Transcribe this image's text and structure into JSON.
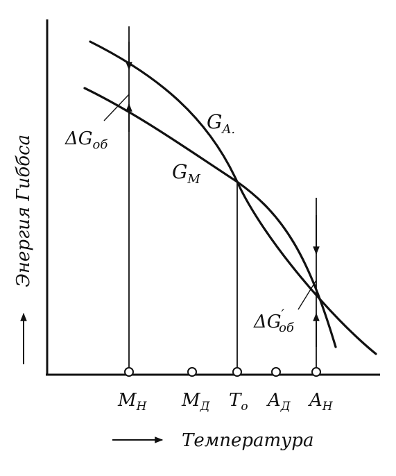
{
  "diagram": {
    "y_axis_label": "Энергия Гиббса",
    "x_axis_label": "Температура",
    "curves": [
      {
        "id": "ga",
        "label": "G",
        "sub": "A."
      },
      {
        "id": "gm",
        "label": "G",
        "sub": "M"
      }
    ],
    "delta_labels": [
      {
        "id": "dg-ob",
        "prefix": "ΔG",
        "sub": "об"
      },
      {
        "id": "dg-ob-prime",
        "prefix": "ΔG",
        "sup": "′",
        "sub": "об"
      }
    ],
    "points": [
      {
        "id": "mh",
        "main": "M",
        "sub": "H"
      },
      {
        "id": "md",
        "main": "M",
        "sub": "Д"
      },
      {
        "id": "to",
        "main": "T",
        "sub": "o"
      },
      {
        "id": "ad",
        "main": "A",
        "sub": "Д"
      },
      {
        "id": "ah",
        "main": "A",
        "sub": "H"
      }
    ]
  }
}
